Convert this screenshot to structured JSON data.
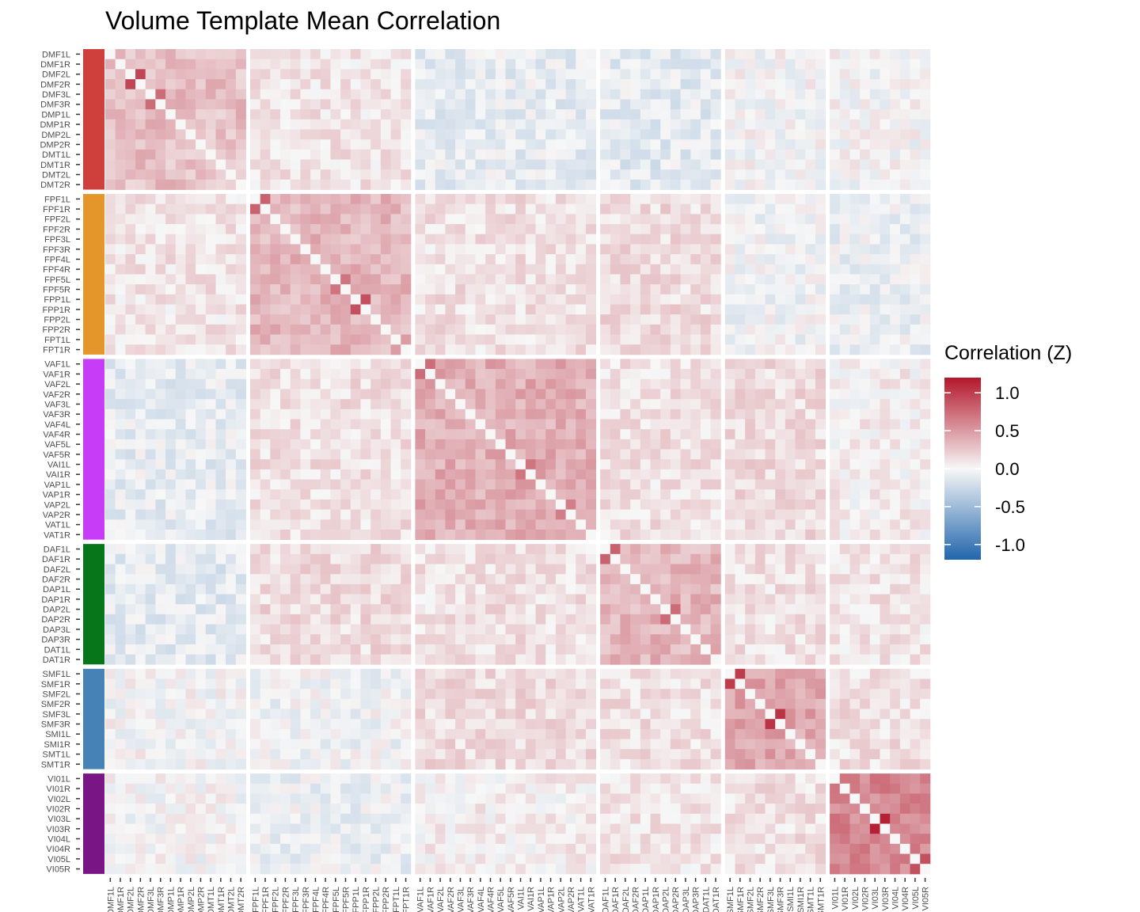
{
  "chart_data": {
    "type": "heatmap",
    "title": "Volume Template Mean Correlation",
    "xlabel": "",
    "ylabel": "",
    "colorbar": {
      "title": "Correlation (Z)",
      "range": [
        -1.2,
        1.2
      ],
      "ticks": [
        1.0,
        0.5,
        0.0,
        -0.5,
        -1.0
      ],
      "tick_labels": [
        "1.0",
        "0.5",
        "0.0",
        "-0.5",
        "-1.0"
      ],
      "colors": {
        "low": "#2166ac",
        "mid": "#f7f7f7",
        "high": "#b2182b"
      }
    },
    "groups": [
      {
        "color": "#cf3f3c",
        "labels": [
          "DMF1L",
          "DMF1R",
          "DMF2L",
          "DMF2R",
          "DMF3L",
          "DMF3R",
          "DMP1L",
          "DMP1R",
          "DMP2L",
          "DMP2R",
          "DMT1L",
          "DMT1R",
          "DMT2L",
          "DMT2R"
        ]
      },
      {
        "color": "#e5962a",
        "labels": [
          "FPF1L",
          "FPF1R",
          "FPF2L",
          "FPF2R",
          "FPF3L",
          "FPF3R",
          "FPF4L",
          "FPF4R",
          "FPF5L",
          "FPF5R",
          "FPP1L",
          "FPP1R",
          "FPP2L",
          "FPP2R",
          "FPT1L",
          "FPT1R"
        ]
      },
      {
        "color": "#c73cf6",
        "labels": [
          "VAF1L",
          "VAF1R",
          "VAF2L",
          "VAF2R",
          "VAF3L",
          "VAF3R",
          "VAF4L",
          "VAF4R",
          "VAF5L",
          "VAF5R",
          "VAI1L",
          "VAI1R",
          "VAP1L",
          "VAP1R",
          "VAP2L",
          "VAP2R",
          "VAT1L",
          "VAT1R"
        ]
      },
      {
        "color": "#07761b",
        "labels": [
          "DAF1L",
          "DAF1R",
          "DAF2L",
          "DAF2R",
          "DAP1L",
          "DAP1R",
          "DAP2L",
          "DAP2R",
          "DAP3L",
          "DAP3R",
          "DAT1L",
          "DAT1R"
        ]
      },
      {
        "color": "#4682b6",
        "labels": [
          "SMF1L",
          "SMF1R",
          "SMF2L",
          "SMF2R",
          "SMF3L",
          "SMF3R",
          "SMI1L",
          "SMI1R",
          "SMT1L",
          "SMT1R"
        ]
      },
      {
        "color": "#7a1585",
        "labels": [
          "VI01L",
          "VI01R",
          "VI02L",
          "VI02R",
          "VI03L",
          "VI03R",
          "VI04L",
          "VI04R",
          "VI05L",
          "VI05R"
        ]
      }
    ],
    "block_mean": [
      [
        0.3,
        0.1,
        -0.08,
        -0.1,
        0.0,
        0.0
      ],
      [
        0.1,
        0.35,
        0.12,
        0.15,
        -0.02,
        -0.05
      ],
      [
        -0.08,
        0.12,
        0.4,
        0.12,
        0.15,
        0.05
      ],
      [
        -0.1,
        0.15,
        0.12,
        0.35,
        0.12,
        0.1
      ],
      [
        0.0,
        -0.02,
        0.15,
        0.12,
        0.45,
        0.12
      ],
      [
        0.0,
        -0.05,
        0.05,
        0.1,
        0.12,
        0.6
      ]
    ],
    "notable_cells": [
      {
        "x": "DMF2R",
        "y": "DMF2L",
        "value": 0.95
      },
      {
        "x": "DMF3R",
        "y": "DMF3L",
        "value": 0.75
      },
      {
        "x": "FPF1R",
        "y": "FPF1L",
        "value": 0.8
      },
      {
        "x": "FPF5R",
        "y": "FPF5L",
        "value": 0.7
      },
      {
        "x": "FPP1R",
        "y": "FPP1L",
        "value": 0.9
      },
      {
        "x": "VAF1R",
        "y": "VAF1L",
        "value": 0.75
      },
      {
        "x": "VAI1R",
        "y": "VAI1L",
        "value": 0.7
      },
      {
        "x": "VAP2R",
        "y": "VAP2L",
        "value": 0.65
      },
      {
        "x": "DAF1R",
        "y": "DAF1L",
        "value": 0.8
      },
      {
        "x": "DAP2R",
        "y": "DAP2L",
        "value": 0.75
      },
      {
        "x": "SMF1R",
        "y": "SMF1L",
        "value": 1.0
      },
      {
        "x": "SMF3R",
        "y": "SMF3L",
        "value": 1.05
      },
      {
        "x": "VI03R",
        "y": "VI03L",
        "value": 1.15
      },
      {
        "x": "VI05R",
        "y": "VI05L",
        "value": 0.9
      },
      {
        "x": "VI01R",
        "y": "VI01L",
        "value": 0.7
      }
    ],
    "diagonal": null,
    "grid": false,
    "legend_position": "right"
  }
}
